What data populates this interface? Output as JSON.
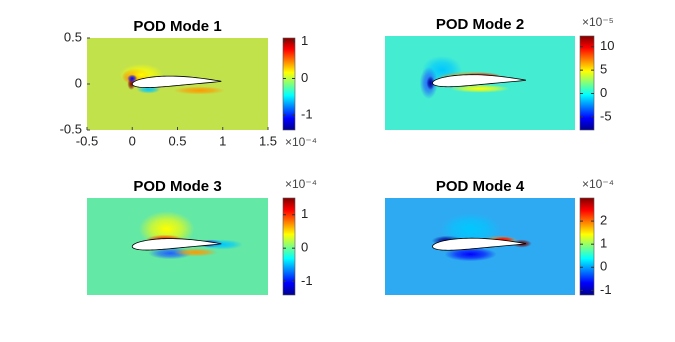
{
  "chart_data": [
    {
      "type": "heatmap",
      "title": "POD Mode 1",
      "xlim": [
        -0.5,
        1.5
      ],
      "ylim": [
        -0.5,
        0.5
      ],
      "xticks": [
        -0.5,
        0,
        0.5,
        1,
        1.5
      ],
      "yticks": [
        -0.5,
        0,
        0.5
      ],
      "clim": [
        -1.4,
        1.1
      ],
      "cticks": [
        -1,
        0,
        1
      ],
      "colorbar_scale": "×10⁻⁴"
    },
    {
      "type": "heatmap",
      "title": "POD Mode 2",
      "clim": [
        -7.8,
        12.3
      ],
      "cticks": [
        -5,
        0,
        5,
        10
      ],
      "colorbar_scale": "×10⁻⁵"
    },
    {
      "type": "heatmap",
      "title": "POD Mode 3",
      "clim": [
        -1.4,
        1.5
      ],
      "cticks": [
        -1,
        0,
        1
      ],
      "colorbar_scale": "×10⁻⁴"
    },
    {
      "type": "heatmap",
      "title": "POD Mode 4",
      "clim": [
        -1.2,
        3.0
      ],
      "cticks": [
        -1,
        0,
        1,
        2
      ],
      "colorbar_scale": "×10⁻⁴"
    }
  ]
}
